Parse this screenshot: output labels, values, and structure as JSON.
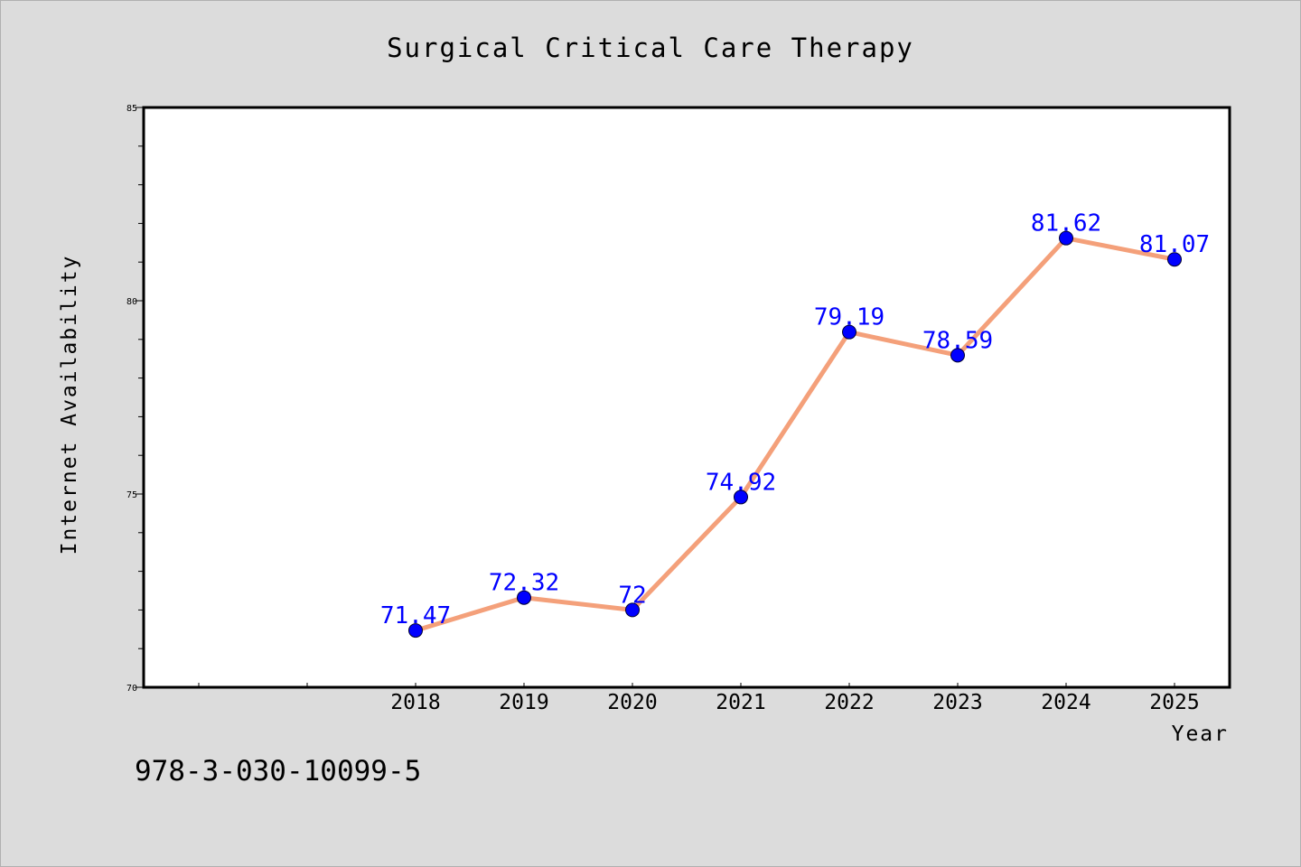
{
  "chart_data": {
    "type": "line",
    "title": "Surgical Critical Care Therapy",
    "xlabel": "Year",
    "ylabel": "Internet Availability",
    "x": [
      "2018",
      "2019",
      "2020",
      "2021",
      "2022",
      "2023",
      "2024",
      "2025"
    ],
    "series": [
      {
        "values": [
          71.47,
          72.32,
          72,
          74.92,
          79.19,
          78.59,
          81.62,
          81.07
        ],
        "data_labels": [
          "71.47",
          "72.32",
          "72",
          "74.92",
          "79.19",
          "78.59",
          "81.62",
          "81.07"
        ]
      }
    ],
    "ylim": [
      70,
      85
    ],
    "yticks": [
      "70",
      "75",
      "80",
      "85"
    ],
    "grid": false,
    "legend": "none",
    "line_color": "#f4a07a",
    "marker_color": "#0000ff",
    "label_color": "#0000ff",
    "background": "#ffffff",
    "page_background": "#dcdcdc"
  },
  "footnote": "978-3-030-10099-5"
}
